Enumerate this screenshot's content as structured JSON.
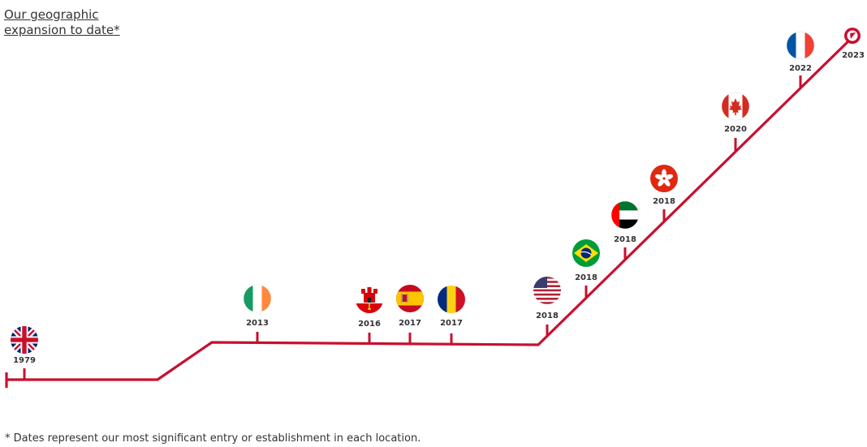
{
  "title": {
    "line1": "Our geographic",
    "line2": "expansion to date*"
  },
  "footnote": "* Dates represent our most significant entry or establishment in each location.",
  "colors": {
    "line": "#c8102e",
    "text": "#333333"
  },
  "milestones": [
    {
      "year": "1979",
      "flag": "united-kingdom-flag-icon"
    },
    {
      "year": "2013",
      "flag": "ireland-flag-icon"
    },
    {
      "year": "2016",
      "flag": "gibraltar-flag-icon"
    },
    {
      "year": "2017",
      "flag": "spain-flag-icon"
    },
    {
      "year": "2017",
      "flag": "romania-flag-icon"
    },
    {
      "year": "2018",
      "flag": "usa-flag-icon"
    },
    {
      "year": "2018",
      "flag": "brazil-flag-icon"
    },
    {
      "year": "2018",
      "flag": "uae-flag-icon"
    },
    {
      "year": "2018",
      "flag": "hong-kong-flag-icon"
    },
    {
      "year": "2020",
      "flag": "canada-flag-icon"
    },
    {
      "year": "2022",
      "flag": "france-flag-icon"
    },
    {
      "year": "2023",
      "flag": "arrow-end-icon"
    }
  ]
}
